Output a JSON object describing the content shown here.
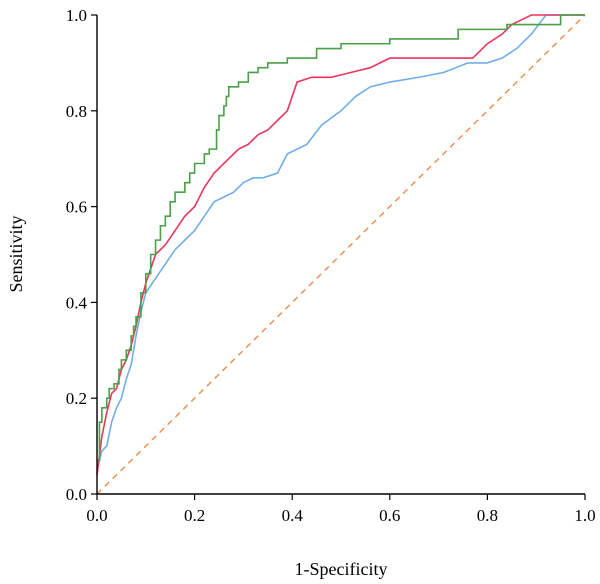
{
  "chart_data": {
    "type": "line",
    "title": "",
    "xlabel": "1-Specificity",
    "ylabel": "Sensitivity",
    "xlim": [
      0,
      1
    ],
    "ylim": [
      0,
      1
    ],
    "xticks": [
      "0.0",
      "0.2",
      "0.4",
      "0.6",
      "0.8",
      "1.0"
    ],
    "yticks": [
      "0.0",
      "0.2",
      "0.4",
      "0.6",
      "0.8",
      "1.0"
    ],
    "grid": false,
    "legend": "none",
    "reference_line": {
      "color": "#ee8a45",
      "style": "dashed",
      "points": [
        [
          0,
          0
        ],
        [
          1,
          1
        ]
      ]
    },
    "series": [
      {
        "color": "#4aa047",
        "step": true,
        "points": [
          [
            0,
            0.07
          ],
          [
            0.005,
            0.15
          ],
          [
            0.01,
            0.18
          ],
          [
            0.02,
            0.2
          ],
          [
            0.025,
            0.22
          ],
          [
            0.035,
            0.23
          ],
          [
            0.045,
            0.26
          ],
          [
            0.05,
            0.28
          ],
          [
            0.06,
            0.3
          ],
          [
            0.07,
            0.33
          ],
          [
            0.075,
            0.35
          ],
          [
            0.08,
            0.37
          ],
          [
            0.09,
            0.42
          ],
          [
            0.1,
            0.46
          ],
          [
            0.11,
            0.5
          ],
          [
            0.12,
            0.53
          ],
          [
            0.13,
            0.56
          ],
          [
            0.14,
            0.58
          ],
          [
            0.15,
            0.61
          ],
          [
            0.16,
            0.63
          ],
          [
            0.18,
            0.65
          ],
          [
            0.19,
            0.67
          ],
          [
            0.2,
            0.69
          ],
          [
            0.22,
            0.71
          ],
          [
            0.23,
            0.72
          ],
          [
            0.245,
            0.76
          ],
          [
            0.25,
            0.79
          ],
          [
            0.26,
            0.81
          ],
          [
            0.265,
            0.83
          ],
          [
            0.27,
            0.85
          ],
          [
            0.29,
            0.86
          ],
          [
            0.31,
            0.88
          ],
          [
            0.33,
            0.89
          ],
          [
            0.35,
            0.9
          ],
          [
            0.39,
            0.91
          ],
          [
            0.45,
            0.93
          ],
          [
            0.5,
            0.94
          ],
          [
            0.6,
            0.95
          ],
          [
            0.74,
            0.97
          ],
          [
            0.84,
            0.98
          ],
          [
            0.95,
            1.0
          ],
          [
            1.0,
            1.0
          ]
        ]
      },
      {
        "color": "#e8365f",
        "step": false,
        "points": [
          [
            0,
            0.04
          ],
          [
            0.005,
            0.08
          ],
          [
            0.01,
            0.12
          ],
          [
            0.02,
            0.17
          ],
          [
            0.03,
            0.21
          ],
          [
            0.04,
            0.22
          ],
          [
            0.05,
            0.26
          ],
          [
            0.06,
            0.28
          ],
          [
            0.07,
            0.31
          ],
          [
            0.08,
            0.35
          ],
          [
            0.09,
            0.4
          ],
          [
            0.1,
            0.44
          ],
          [
            0.11,
            0.47
          ],
          [
            0.12,
            0.5
          ],
          [
            0.14,
            0.52
          ],
          [
            0.16,
            0.55
          ],
          [
            0.18,
            0.58
          ],
          [
            0.2,
            0.6
          ],
          [
            0.22,
            0.64
          ],
          [
            0.24,
            0.67
          ],
          [
            0.27,
            0.7
          ],
          [
            0.29,
            0.72
          ],
          [
            0.31,
            0.73
          ],
          [
            0.33,
            0.75
          ],
          [
            0.35,
            0.76
          ],
          [
            0.37,
            0.78
          ],
          [
            0.39,
            0.8
          ],
          [
            0.41,
            0.86
          ],
          [
            0.44,
            0.87
          ],
          [
            0.48,
            0.87
          ],
          [
            0.52,
            0.88
          ],
          [
            0.56,
            0.89
          ],
          [
            0.6,
            0.91
          ],
          [
            0.7,
            0.91
          ],
          [
            0.77,
            0.91
          ],
          [
            0.8,
            0.94
          ],
          [
            0.83,
            0.96
          ],
          [
            0.85,
            0.98
          ],
          [
            0.87,
            0.99
          ],
          [
            0.89,
            1.0
          ],
          [
            1.0,
            1.0
          ]
        ]
      },
      {
        "color": "#72aee6",
        "step": false,
        "points": [
          [
            0,
            0.05
          ],
          [
            0.005,
            0.07
          ],
          [
            0.01,
            0.09
          ],
          [
            0.02,
            0.1
          ],
          [
            0.03,
            0.15
          ],
          [
            0.04,
            0.18
          ],
          [
            0.05,
            0.2
          ],
          [
            0.06,
            0.24
          ],
          [
            0.07,
            0.27
          ],
          [
            0.08,
            0.33
          ],
          [
            0.09,
            0.38
          ],
          [
            0.1,
            0.42
          ],
          [
            0.12,
            0.45
          ],
          [
            0.14,
            0.48
          ],
          [
            0.16,
            0.51
          ],
          [
            0.18,
            0.53
          ],
          [
            0.2,
            0.55
          ],
          [
            0.22,
            0.58
          ],
          [
            0.24,
            0.61
          ],
          [
            0.26,
            0.62
          ],
          [
            0.28,
            0.63
          ],
          [
            0.3,
            0.65
          ],
          [
            0.32,
            0.66
          ],
          [
            0.34,
            0.66
          ],
          [
            0.37,
            0.67
          ],
          [
            0.39,
            0.71
          ],
          [
            0.43,
            0.73
          ],
          [
            0.46,
            0.77
          ],
          [
            0.5,
            0.8
          ],
          [
            0.53,
            0.83
          ],
          [
            0.56,
            0.85
          ],
          [
            0.6,
            0.86
          ],
          [
            0.66,
            0.87
          ],
          [
            0.71,
            0.88
          ],
          [
            0.76,
            0.9
          ],
          [
            0.8,
            0.9
          ],
          [
            0.83,
            0.91
          ],
          [
            0.86,
            0.93
          ],
          [
            0.89,
            0.96
          ],
          [
            0.92,
            1.0
          ],
          [
            1.0,
            1.0
          ]
        ]
      }
    ]
  }
}
